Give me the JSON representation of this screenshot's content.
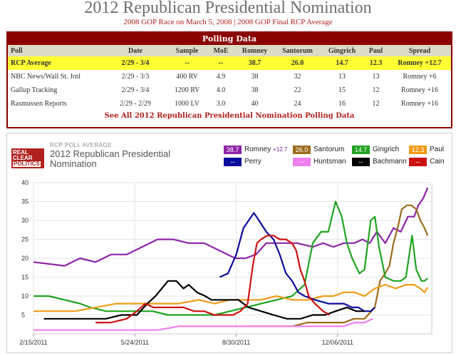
{
  "header": {
    "title": "2012 Republican Presidential Nomination",
    "subtitle": "2008 GOP Race on March 5, 2008 | 2008 GOP Final RCP Average"
  },
  "polling": {
    "heading": "Polling Data",
    "columns": [
      "Poll",
      "Date",
      "Sample",
      "MoE",
      "Romney",
      "Santorum",
      "Gingrich",
      "Paul",
      "Spread"
    ],
    "average": {
      "poll": "RCP Average",
      "date": "2/29 - 3/4",
      "sample": "--",
      "moe": "--",
      "romney": "38.7",
      "santorum": "26.0",
      "gingrich": "14.7",
      "paul": "12.3",
      "spread": "Romney +12.7"
    },
    "rows": [
      {
        "poll": "NBC News/Wall St. Jrnl",
        "date": "2/29 - 3/3",
        "sample": "400 RV",
        "moe": "4.9",
        "romney": "38",
        "santorum": "32",
        "gingrich": "13",
        "paul": "13",
        "spread": "Romney +6"
      },
      {
        "poll": "Gallup Tracking",
        "date": "2/29 - 3/4",
        "sample": "1200 RV",
        "moe": "4.0",
        "romney": "38",
        "santorum": "22",
        "gingrich": "15",
        "paul": "12",
        "spread": "Romney +16"
      },
      {
        "poll": "Rasmussen Reports",
        "date": "2/29 - 2/29",
        "sample": "1000 LV",
        "moe": "3.0",
        "romney": "40",
        "santorum": "24",
        "gingrich": "16",
        "paul": "12",
        "spread": "Romney +16"
      }
    ],
    "see_all": "See All 2012 Republican Presidential Nomination Polling Data"
  },
  "logo": {
    "line1": "REAL",
    "line2": "CLEAR",
    "line3": "POLITICS"
  },
  "chart_caption": "RCP POLL AVERAGE",
  "legend": [
    {
      "value": "38.7",
      "name": "Romney",
      "spread": "+12.7",
      "color": "#8e24aa"
    },
    {
      "value": "26.0",
      "name": "Santorum",
      "spread": "",
      "color": "#9c6b1a"
    },
    {
      "value": "14.7",
      "name": "Gingrich",
      "spread": "",
      "color": "#1fa31f"
    },
    {
      "value": "12.3",
      "name": "Paul",
      "spread": "",
      "color": "#f29b16"
    },
    {
      "value": "--",
      "name": "Perry",
      "spread": "",
      "color": "#0b0b9e"
    },
    {
      "value": "--",
      "name": "Huntsman",
      "spread": "",
      "color": "#f07ff0"
    },
    {
      "value": "--",
      "name": "Bachmann",
      "spread": "",
      "color": "#000000"
    },
    {
      "value": "--",
      "name": "Cain",
      "spread": "",
      "color": "#cc1111"
    }
  ],
  "chart_data": {
    "type": "line",
    "title": "2012 Republican Presidential Nomination",
    "xlabel": "",
    "ylabel": "",
    "ylim": [
      0,
      40
    ],
    "xlim": [
      0,
      385
    ],
    "x_unit": "days since 2/15/2011",
    "yticks": [
      5,
      10,
      15,
      20,
      25,
      30,
      35,
      40
    ],
    "xticks": [
      {
        "day": 0,
        "label": "2/15/2011"
      },
      {
        "day": 98,
        "label": "5/24/2011"
      },
      {
        "day": 196,
        "label": "8/30/2011"
      },
      {
        "day": 294,
        "label": "12/06/2011"
      }
    ],
    "grid": true,
    "legend_position": "top-right",
    "series": [
      {
        "name": "Romney",
        "color": "#8e24aa",
        "points": [
          [
            0,
            19
          ],
          [
            30,
            18
          ],
          [
            45,
            20
          ],
          [
            60,
            19
          ],
          [
            75,
            21
          ],
          [
            90,
            21
          ],
          [
            105,
            23
          ],
          [
            120,
            25
          ],
          [
            135,
            25
          ],
          [
            150,
            24
          ],
          [
            165,
            24
          ],
          [
            180,
            22
          ],
          [
            195,
            20
          ],
          [
            205,
            20
          ],
          [
            215,
            21
          ],
          [
            225,
            24
          ],
          [
            240,
            24
          ],
          [
            255,
            24
          ],
          [
            270,
            23
          ],
          [
            280,
            24
          ],
          [
            290,
            23
          ],
          [
            300,
            24
          ],
          [
            310,
            24
          ],
          [
            318,
            25
          ],
          [
            325,
            24
          ],
          [
            332,
            27
          ],
          [
            340,
            24
          ],
          [
            348,
            28
          ],
          [
            355,
            27
          ],
          [
            362,
            31
          ],
          [
            368,
            31
          ],
          [
            372,
            34
          ],
          [
            377,
            36
          ],
          [
            381,
            38.7
          ]
        ]
      },
      {
        "name": "Santorum",
        "color": "#9c6b1a",
        "points": [
          [
            205,
            2
          ],
          [
            220,
            2
          ],
          [
            235,
            2
          ],
          [
            250,
            2
          ],
          [
            265,
            3
          ],
          [
            280,
            3
          ],
          [
            290,
            3
          ],
          [
            300,
            3
          ],
          [
            310,
            4
          ],
          [
            320,
            4
          ],
          [
            330,
            7
          ],
          [
            335,
            14
          ],
          [
            340,
            16
          ],
          [
            344,
            18
          ],
          [
            348,
            24
          ],
          [
            352,
            28
          ],
          [
            356,
            33
          ],
          [
            361,
            34
          ],
          [
            365,
            34
          ],
          [
            370,
            33
          ],
          [
            374,
            30
          ],
          [
            378,
            28
          ],
          [
            381,
            26
          ]
        ]
      },
      {
        "name": "Gingrich",
        "color": "#1fa31f",
        "points": [
          [
            0,
            10
          ],
          [
            15,
            10
          ],
          [
            30,
            9
          ],
          [
            45,
            8
          ],
          [
            55,
            7
          ],
          [
            70,
            6
          ],
          [
            85,
            6
          ],
          [
            100,
            6
          ],
          [
            115,
            6
          ],
          [
            130,
            5
          ],
          [
            145,
            5
          ],
          [
            160,
            5
          ],
          [
            175,
            5
          ],
          [
            190,
            6
          ],
          [
            205,
            7
          ],
          [
            220,
            8
          ],
          [
            235,
            9
          ],
          [
            250,
            10
          ],
          [
            262,
            13
          ],
          [
            270,
            24
          ],
          [
            278,
            27
          ],
          [
            285,
            27
          ],
          [
            292,
            35
          ],
          [
            298,
            31
          ],
          [
            303,
            24
          ],
          [
            308,
            20
          ],
          [
            315,
            16
          ],
          [
            320,
            17
          ],
          [
            326,
            30
          ],
          [
            330,
            31
          ],
          [
            334,
            23
          ],
          [
            340,
            15
          ],
          [
            348,
            14
          ],
          [
            355,
            14
          ],
          [
            360,
            15
          ],
          [
            366,
            26
          ],
          [
            370,
            17
          ],
          [
            375,
            14
          ],
          [
            378,
            14
          ],
          [
            381,
            14.7
          ]
        ]
      },
      {
        "name": "Paul",
        "color": "#f29b16",
        "points": [
          [
            0,
            6
          ],
          [
            20,
            6
          ],
          [
            40,
            6
          ],
          [
            60,
            7
          ],
          [
            80,
            8
          ],
          [
            100,
            8
          ],
          [
            120,
            8
          ],
          [
            140,
            8
          ],
          [
            160,
            9
          ],
          [
            175,
            8
          ],
          [
            190,
            9
          ],
          [
            205,
            9
          ],
          [
            220,
            9
          ],
          [
            235,
            10
          ],
          [
            250,
            9
          ],
          [
            265,
            9
          ],
          [
            280,
            10
          ],
          [
            290,
            10
          ],
          [
            300,
            11
          ],
          [
            310,
            11
          ],
          [
            320,
            10
          ],
          [
            330,
            12
          ],
          [
            340,
            13
          ],
          [
            350,
            12
          ],
          [
            360,
            13
          ],
          [
            368,
            13
          ],
          [
            374,
            12
          ],
          [
            378,
            11
          ],
          [
            381,
            12.3
          ]
        ]
      },
      {
        "name": "Perry",
        "color": "#0b0b9e",
        "points": [
          [
            180,
            15
          ],
          [
            188,
            16
          ],
          [
            196,
            21
          ],
          [
            203,
            28
          ],
          [
            208,
            30
          ],
          [
            213,
            32
          ],
          [
            218,
            30
          ],
          [
            225,
            27
          ],
          [
            232,
            25
          ],
          [
            238,
            21
          ],
          [
            244,
            16
          ],
          [
            250,
            14
          ],
          [
            256,
            11
          ],
          [
            262,
            10
          ],
          [
            272,
            9
          ],
          [
            285,
            8
          ],
          [
            292,
            8
          ],
          [
            300,
            8
          ],
          [
            308,
            7
          ],
          [
            314,
            7
          ],
          [
            320,
            6
          ],
          [
            326,
            6
          ],
          [
            330,
            7
          ]
        ]
      },
      {
        "name": "Huntsman",
        "color": "#f07ff0",
        "points": [
          [
            0,
            1
          ],
          [
            40,
            1
          ],
          [
            60,
            1
          ],
          [
            80,
            1
          ],
          [
            100,
            1
          ],
          [
            120,
            1
          ],
          [
            140,
            2
          ],
          [
            160,
            2
          ],
          [
            180,
            2
          ],
          [
            200,
            2
          ],
          [
            220,
            2
          ],
          [
            240,
            2
          ],
          [
            255,
            2
          ],
          [
            270,
            2
          ],
          [
            285,
            2
          ],
          [
            300,
            2
          ],
          [
            310,
            3
          ],
          [
            320,
            3
          ],
          [
            328,
            4
          ]
        ]
      },
      {
        "name": "Bachmann",
        "color": "#000000",
        "points": [
          [
            10,
            4
          ],
          [
            30,
            4
          ],
          [
            50,
            4
          ],
          [
            70,
            4
          ],
          [
            85,
            5
          ],
          [
            100,
            5
          ],
          [
            110,
            8
          ],
          [
            118,
            10
          ],
          [
            124,
            12
          ],
          [
            130,
            14
          ],
          [
            138,
            14
          ],
          [
            145,
            12
          ],
          [
            150,
            13
          ],
          [
            158,
            11
          ],
          [
            166,
            10
          ],
          [
            172,
            9
          ],
          [
            178,
            9
          ],
          [
            188,
            9
          ],
          [
            198,
            9
          ],
          [
            208,
            7
          ],
          [
            220,
            6
          ],
          [
            232,
            5
          ],
          [
            245,
            4
          ],
          [
            258,
            4
          ],
          [
            270,
            5
          ],
          [
            282,
            5
          ],
          [
            292,
            6
          ],
          [
            303,
            7
          ],
          [
            312,
            6
          ],
          [
            320,
            6
          ]
        ]
      },
      {
        "name": "Cain",
        "color": "#cc1111",
        "points": [
          [
            60,
            3
          ],
          [
            75,
            3
          ],
          [
            90,
            4
          ],
          [
            100,
            6
          ],
          [
            108,
            8
          ],
          [
            116,
            7
          ],
          [
            125,
            7
          ],
          [
            135,
            7
          ],
          [
            145,
            7
          ],
          [
            155,
            6
          ],
          [
            165,
            6
          ],
          [
            175,
            5
          ],
          [
            185,
            5
          ],
          [
            193,
            5
          ],
          [
            200,
            6
          ],
          [
            207,
            8
          ],
          [
            212,
            18
          ],
          [
            216,
            24
          ],
          [
            220,
            25
          ],
          [
            226,
            26
          ],
          [
            232,
            26
          ],
          [
            238,
            25
          ],
          [
            244,
            25
          ],
          [
            250,
            24
          ],
          [
            254,
            22
          ],
          [
            258,
            17
          ],
          [
            262,
            14
          ],
          [
            266,
            10
          ],
          [
            272,
            8
          ],
          [
            280,
            6
          ],
          [
            286,
            5
          ]
        ]
      }
    ]
  }
}
